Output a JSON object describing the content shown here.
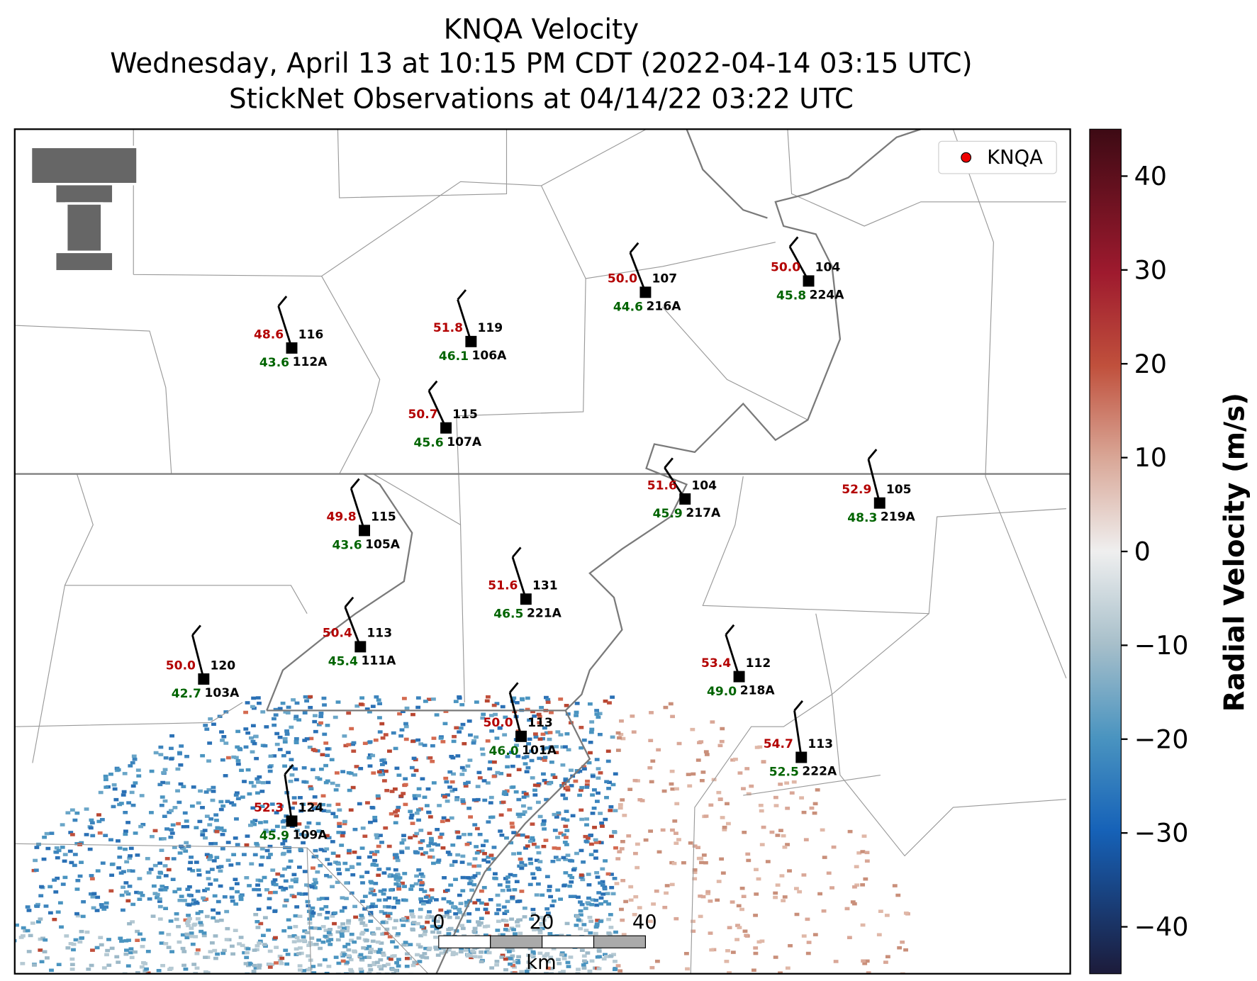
{
  "title": {
    "line1": "KNQA Velocity",
    "line2": "Wednesday, April 13 at 10:15 PM CDT (2022-04-14 03:15 UTC)",
    "line3": "StickNet Observations at 04/14/22 03:22 UTC"
  },
  "legend": {
    "label": "KNQA"
  },
  "colorbar": {
    "label": "Radial Velocity (m/s)",
    "lim": [
      -45,
      45
    ],
    "ticks": [
      {
        "value": 40,
        "label": "40"
      },
      {
        "value": 30,
        "label": "30"
      },
      {
        "value": 20,
        "label": "20"
      },
      {
        "value": 10,
        "label": "10"
      },
      {
        "value": 0,
        "label": "0"
      },
      {
        "value": -10,
        "label": "−10"
      },
      {
        "value": -20,
        "label": "−20"
      },
      {
        "value": -30,
        "label": "−30"
      },
      {
        "value": -40,
        "label": "−40"
      }
    ]
  },
  "scale_bar": {
    "ticks": [
      "0",
      "20",
      "40"
    ],
    "unit": "km"
  },
  "stations": [
    {
      "id": "112A",
      "temp": "48.6",
      "dew": "43.6",
      "pres": "116"
    },
    {
      "id": "106A",
      "temp": "51.8",
      "dew": "46.1",
      "pres": "119"
    },
    {
      "id": "216A",
      "temp": "50.0",
      "dew": "44.6",
      "pres": "107"
    },
    {
      "id": "224A",
      "temp": "50.0",
      "dew": "45.8",
      "pres": "104"
    },
    {
      "id": "107A",
      "temp": "50.7",
      "dew": "45.6",
      "pres": "115"
    },
    {
      "id": "217A",
      "temp": "51.6",
      "dew": "45.9",
      "pres": "104"
    },
    {
      "id": "219A",
      "temp": "52.9",
      "dew": "48.3",
      "pres": "105"
    },
    {
      "id": "105A",
      "temp": "49.8",
      "dew": "43.6",
      "pres": "115"
    },
    {
      "id": "221A",
      "temp": "51.6",
      "dew": "46.5",
      "pres": "131"
    },
    {
      "id": "111A",
      "temp": "50.4",
      "dew": "45.4",
      "pres": "113"
    },
    {
      "id": "103A",
      "temp": "50.0",
      "dew": "42.7",
      "pres": "120"
    },
    {
      "id": "218A",
      "temp": "53.4",
      "dew": "49.0",
      "pres": "112"
    },
    {
      "id": "101A",
      "temp": "50.0",
      "dew": "46.0",
      "pres": "113"
    },
    {
      "id": "222A",
      "temp": "54.7",
      "dew": "52.5",
      "pres": "113"
    },
    {
      "id": "109A",
      "temp": "52.3",
      "dew": "45.9",
      "pres": "124"
    }
  ]
}
